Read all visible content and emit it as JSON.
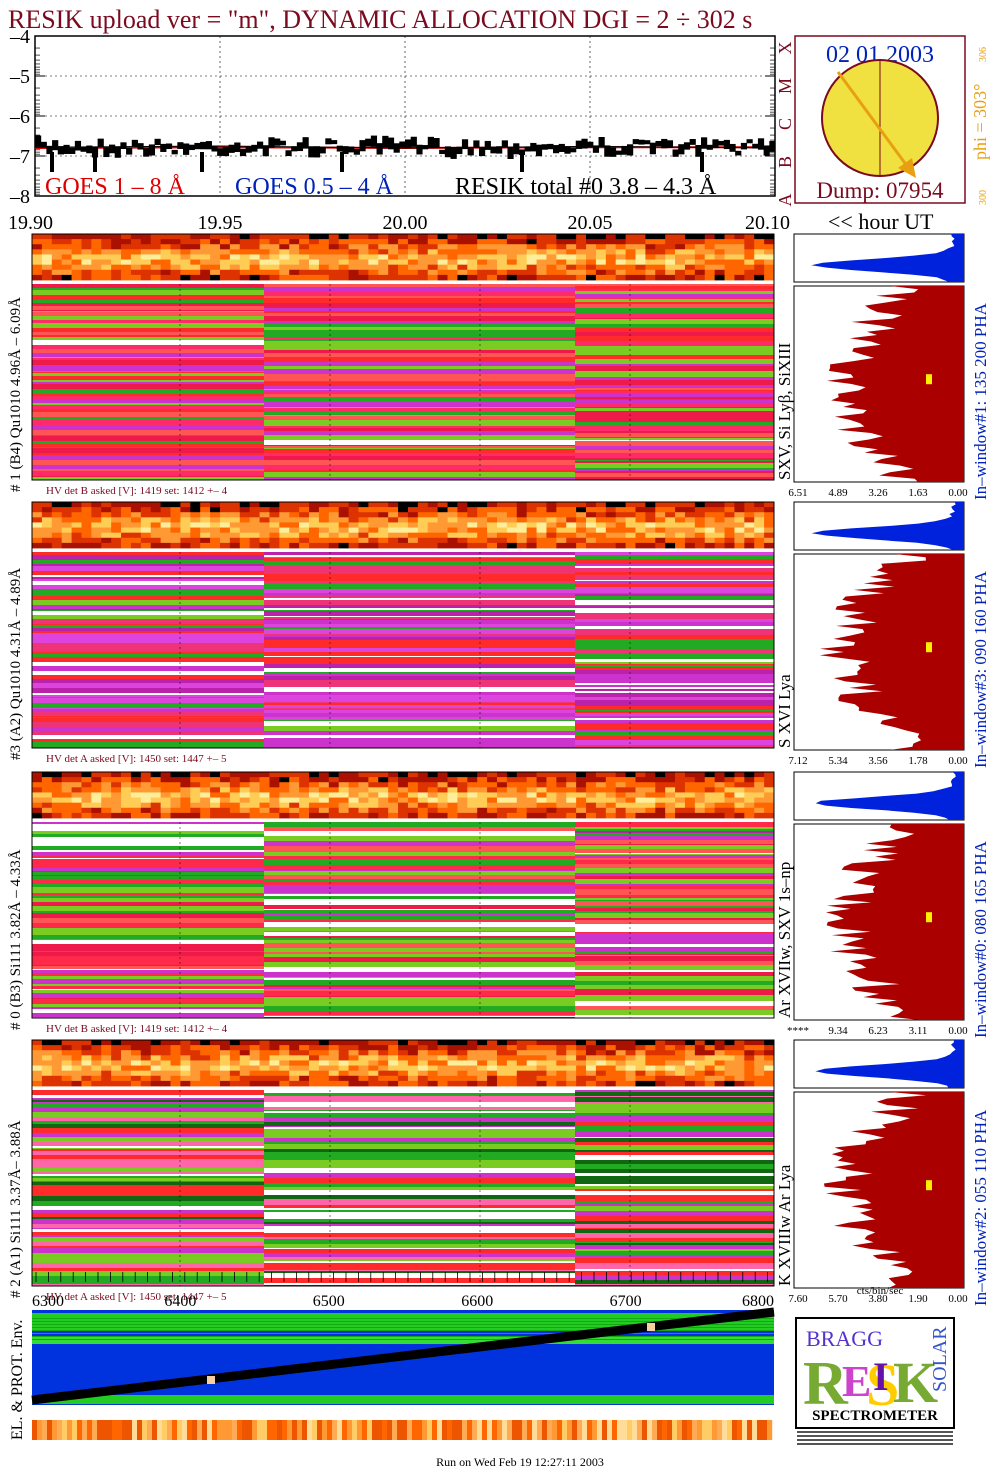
{
  "title": "RESIK upload ver = \"m\", DYNAMIC ALLOCATION  DGI =   2 ÷ 302 s",
  "date": "02 01 2003",
  "phi": "phi = 303°",
  "phi_sub": "306",
  "phi_bottom": "300",
  "dump": "Dump: 07954",
  "goes_classes": [
    "X",
    "M",
    "C",
    "B",
    "A"
  ],
  "colors": {
    "title": "#7a0a1e",
    "goes_long": "#dd0000",
    "goes_short": "#0022bb",
    "resik": "#000000",
    "spectrum": "#aa0000",
    "pha": "#0022dd",
    "sun": "#f0e040",
    "sun_arrow": "#e8a010"
  },
  "lightcurve": {
    "legend_long": "GOES 1 – 8 Å",
    "legend_short": "GOES 0.5 – 4 Å",
    "legend_resik": "RESIK total #0  3.8 – 4.3 Å",
    "yticks": [
      "–4",
      "–5",
      "–6",
      "–7",
      "–8"
    ],
    "xticks": [
      "19.90",
      "19.95",
      "20.00",
      "20.05",
      "20.10"
    ],
    "x_suffix": "<< hour UT"
  },
  "chart_data": [
    {
      "type": "line",
      "title": "RESIK upload ver = \"m\", DYNAMIC ALLOCATION  DGI =   2 ÷ 302 s",
      "xlabel": "<< hour UT",
      "ylabel": "",
      "xlim": [
        19.9,
        20.1
      ],
      "ylim": [
        -8,
        -4
      ],
      "series": [
        {
          "name": "GOES 1 – 8 Å",
          "x": [
            19.9,
            19.95,
            20.0,
            20.05,
            20.1
          ],
          "y": [
            -6.8,
            -6.78,
            -6.8,
            -6.78,
            -6.78
          ]
        },
        {
          "name": "RESIK total #0  3.8 – 4.3 Å",
          "x": [
            19.9,
            19.95,
            20.0,
            20.05,
            20.1
          ],
          "y": [
            -6.78,
            -6.75,
            -6.8,
            -6.76,
            -6.8
          ]
        }
      ]
    },
    {
      "type": "heatmap",
      "panels": [
        {
          "name": "# 1 (B4) Qu1010 4.96Å – 6.09Å",
          "line": "SXV, Si Lyβ, SiXIII",
          "window": "In–window#1:  135 200 PHA",
          "hv": "HV det B asked [V]:  1419 set:  1412 +–   4",
          "xticks": [
            "6.51",
            "4.89",
            "3.26",
            "1.63",
            "0.00"
          ]
        },
        {
          "name": "#3 (A2) Qu1010  4.31Å – 4.89Å",
          "line": "S XVI Lya",
          "window": "In–window#3:  090 160 PHA",
          "hv": "HV det A asked [V]:  1450 set:  1447 +–   5",
          "xticks": [
            "7.12",
            "5.34",
            "3.56",
            "1.78",
            "0.00"
          ]
        },
        {
          "name": "# 0 (B3) Si111  3.82Å – 4.33Å",
          "line": "Ar XVIIw,  SXV 1s–np",
          "window": "In–window#0:  080 165 PHA",
          "hv": "HV det B asked [V]:  1419 set:  1412 +–   4",
          "xticks": [
            "****",
            "9.34",
            "6.23",
            "3.11",
            "0.00"
          ]
        },
        {
          "name": "# 2 (A1) Si111  3.37Å–  3.88Å",
          "line": "K XVIIIw   Ar Lya",
          "window": "In–window#2:  055 110 PHA",
          "hv": "HV det A asked [V]:  1450 set:  1447 +–   5",
          "xticks": [
            "7.60",
            "5.70",
            "3.80",
            "1.90",
            "0.00"
          ]
        }
      ]
    },
    {
      "type": "line",
      "title": "",
      "xlabel": "",
      "ylabel": "EL. & PROT. Env.",
      "xlim": [
        6300,
        6800
      ],
      "xticks": [
        "6300",
        "6400",
        "6500",
        "6600",
        "6700",
        "6800"
      ],
      "series": [
        {
          "name": "",
          "x": [
            6300,
            6800
          ],
          "y": [
            0,
            1
          ]
        }
      ]
    }
  ],
  "spec_axis_label": "cts/bin/sec",
  "env_label": "EL. & PROT. Env.",
  "logo": {
    "letters": "RESIK",
    "bragg": "BRAGG",
    "solar": "SOLAR",
    "caption": "SPECTROMETER"
  },
  "footer": "Run on Wed Feb 19 12:27:11 2003"
}
